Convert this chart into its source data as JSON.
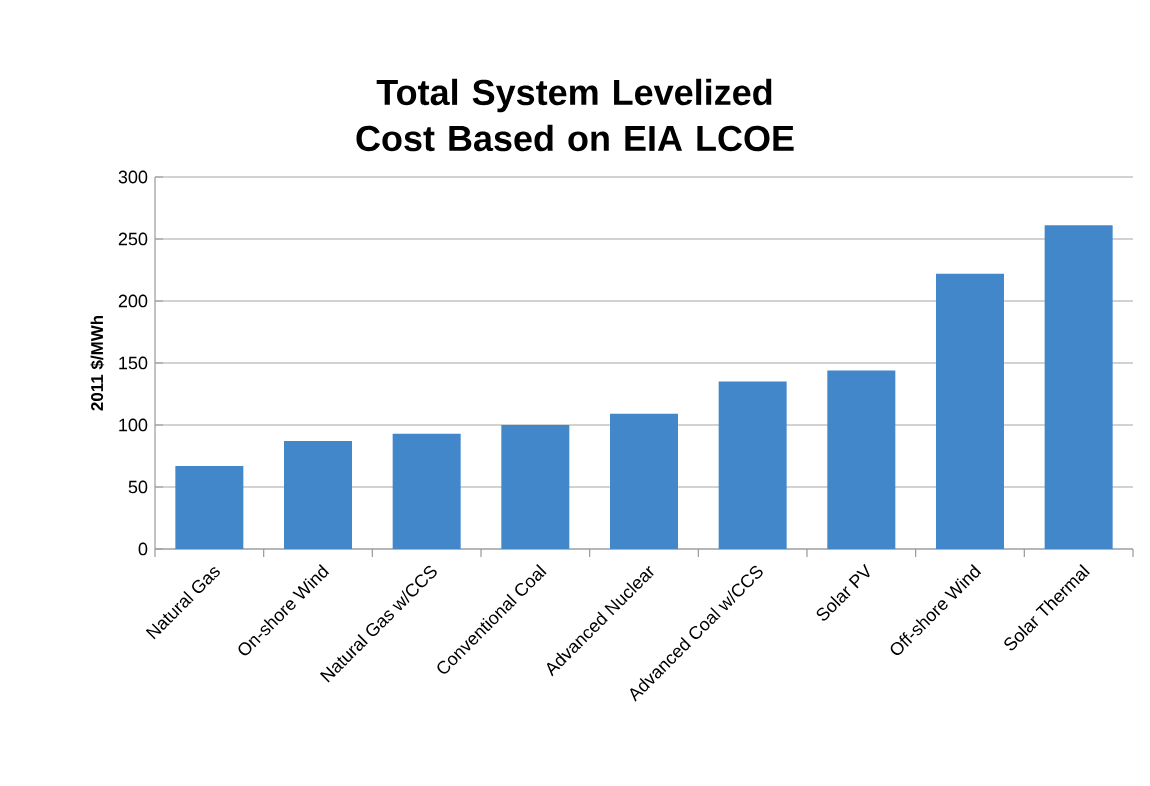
{
  "chart_data": {
    "type": "bar",
    "title": "Total System Levelized Cost Based on EIA LCOE",
    "ylabel": "2011 $/MWh",
    "categories": [
      "Natural Gas",
      "On-shore Wind",
      "Natural Gas w/CCS",
      "Conventional Coal",
      "Advanced Nuclear",
      "Advanced Coal w/CCS",
      "Solar PV",
      "Off-shore Wind",
      "Solar Thermal"
    ],
    "values": [
      67,
      87,
      93,
      100,
      109,
      135,
      144,
      222,
      261
    ],
    "color": "#4387cb",
    "ylim": [
      0,
      300
    ],
    "yticks": [
      0,
      50,
      100,
      150,
      200,
      250,
      300
    ],
    "grid": "y"
  }
}
